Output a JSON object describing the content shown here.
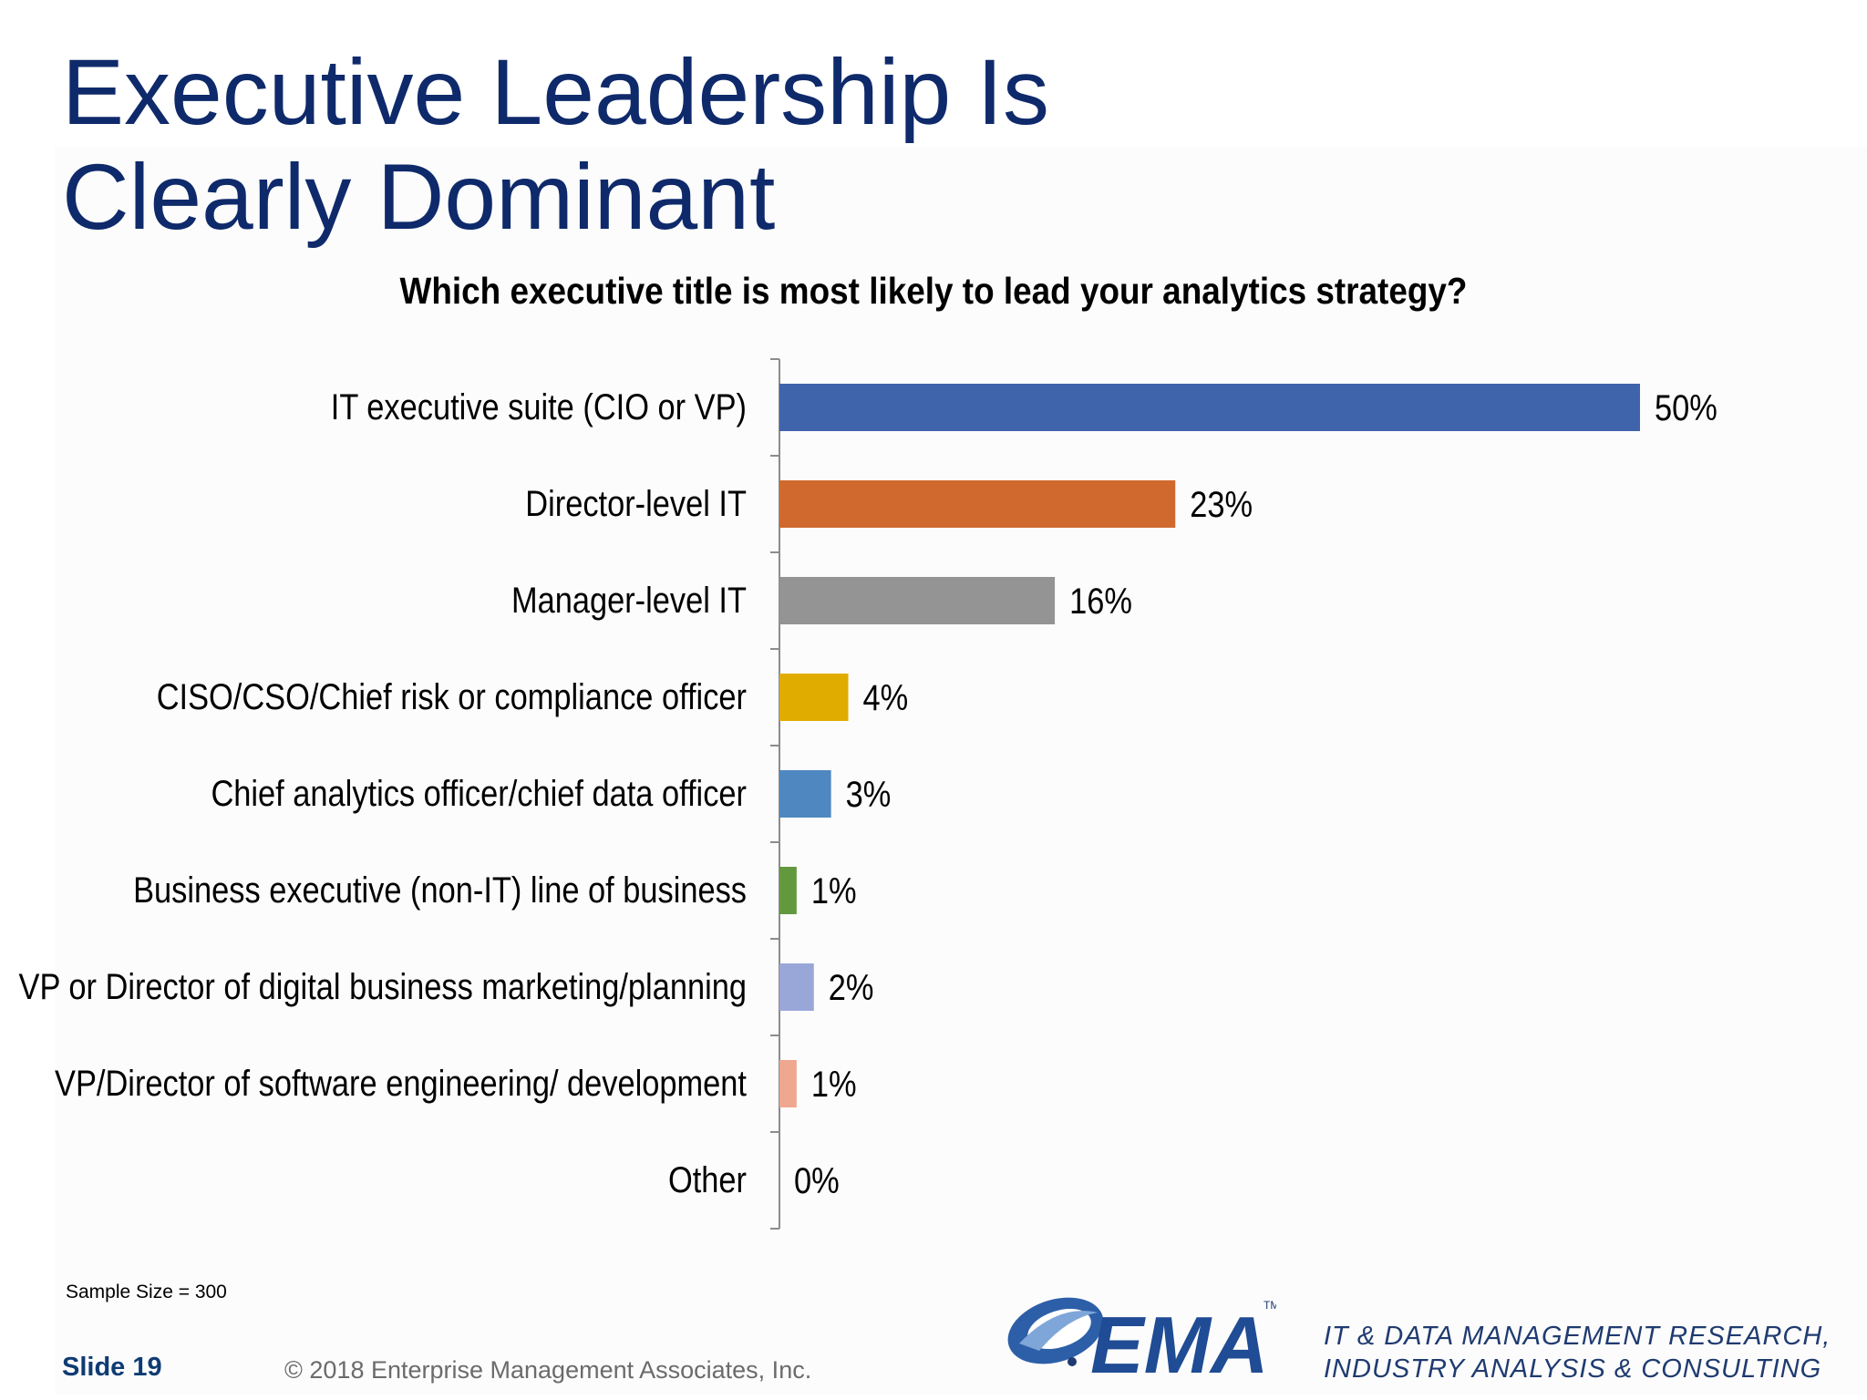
{
  "title": {
    "line1": "Executive Leadership Is",
    "line2": "Clearly Dominant"
  },
  "chart_data": {
    "type": "bar",
    "orientation": "horizontal",
    "title": "Which executive title is most likely to lead your analytics strategy?",
    "categories": [
      "IT executive suite (CIO or VP)",
      "Director-level IT",
      "Manager-level IT",
      "CISO/CSO/Chief risk or compliance officer",
      "Chief analytics officer/chief data officer",
      "Business executive (non-IT) line of business",
      "VP or Director of digital business marketing/planning",
      "VP/Director of software engineering/ development",
      "Other"
    ],
    "values": [
      50,
      23,
      16,
      4,
      3,
      1,
      2,
      1,
      0
    ],
    "value_labels": [
      "50%",
      "23%",
      "16%",
      "4%",
      "3%",
      "1%",
      "2%",
      "1%",
      "0%"
    ],
    "colors": [
      "#4064ac",
      "#d0692e",
      "#949494",
      "#e1ac00",
      "#4f87c0",
      "#63993e",
      "#99a7d8",
      "#efa78f",
      "#4064ac"
    ],
    "xlim": [
      0,
      50
    ],
    "grid": false,
    "legend": "none"
  },
  "footer": {
    "sample_size": "Sample Size = 300",
    "slide_number": "Slide 19",
    "copyright": "© 2018 Enterprise Management Associates, Inc.",
    "logo_text": "EMA",
    "tm": "TM",
    "tagline_line1": "IT & DATA MANAGEMENT RESEARCH,",
    "tagline_line2": "INDUSTRY ANALYSIS & CONSULTING"
  }
}
